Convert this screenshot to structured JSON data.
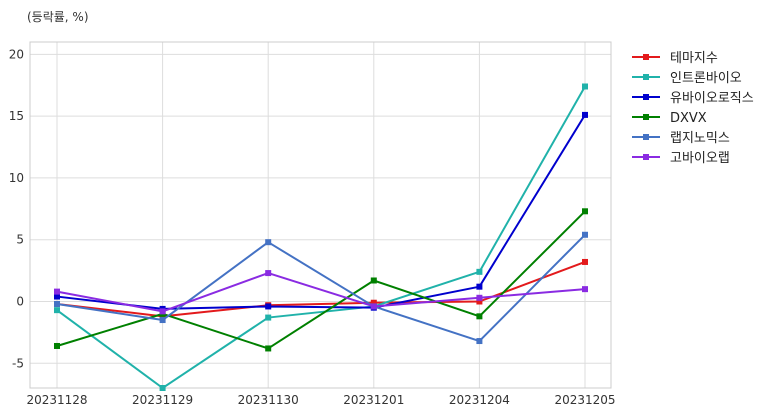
{
  "chart_data": {
    "type": "line",
    "unit_label": "(등락률, %)",
    "categories": [
      "20231128",
      "20231129",
      "20231130",
      "20231201",
      "20231204",
      "20231205"
    ],
    "ylim": [
      -7,
      21
    ],
    "yticks": [
      -5,
      0,
      5,
      10,
      15,
      20
    ],
    "grid": true,
    "legend_position": "outside-right",
    "series": [
      {
        "name": "테마지수",
        "color": "#e31a1c",
        "values": [
          -0.2,
          -1.2,
          -0.3,
          -0.1,
          0.0,
          3.2
        ]
      },
      {
        "name": "인트론바이오",
        "color": "#20b2aa",
        "values": [
          -0.7,
          -7.0,
          -1.3,
          -0.4,
          2.4,
          17.4
        ]
      },
      {
        "name": "유바이오로직스",
        "color": "#0000cd",
        "values": [
          0.4,
          -0.6,
          -0.4,
          -0.5,
          1.2,
          15.1
        ]
      },
      {
        "name": "DXVX",
        "color": "#008000",
        "values": [
          -3.6,
          -1.0,
          -3.8,
          1.7,
          -1.2,
          7.3
        ]
      },
      {
        "name": "랩지노믹스",
        "color": "#4472c4",
        "values": [
          -0.2,
          -1.5,
          4.8,
          -0.4,
          -3.2,
          5.4
        ]
      },
      {
        "name": "고바이오랩",
        "color": "#8a2be2",
        "values": [
          0.8,
          -0.8,
          2.3,
          -0.4,
          0.3,
          1.0
        ]
      }
    ]
  }
}
